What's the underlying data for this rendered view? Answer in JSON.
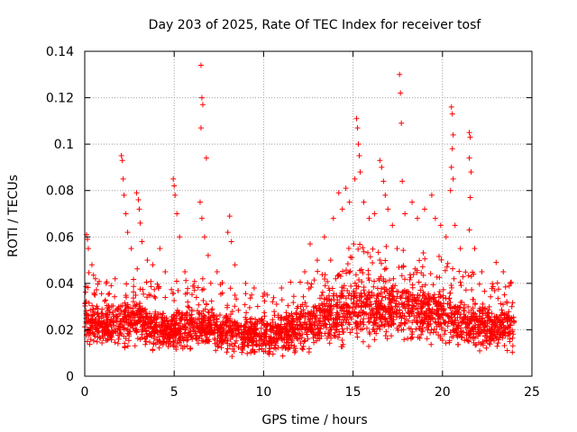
{
  "chart_data": {
    "type": "scatter",
    "title": "Day 203 of 2025, Rate Of TEC Index for receiver tosf",
    "xlabel": "GPS time / hours",
    "ylabel": "ROTI / TECUs",
    "xlim": [
      0,
      25
    ],
    "ylim": [
      0,
      0.14
    ],
    "xticks": [
      "0",
      "5",
      "10",
      "15",
      "20",
      "25"
    ],
    "yticks": [
      "0",
      "0.02",
      "0.04",
      "0.06",
      "0.08",
      "0.1",
      "0.12",
      "0.14"
    ],
    "grid": true,
    "marker": "+",
    "color": "#ff0000",
    "baseline_envelope": [
      {
        "x": 0.0,
        "lo": 0.01,
        "hi": 0.035
      },
      {
        "x": 1.0,
        "lo": 0.009,
        "hi": 0.03
      },
      {
        "x": 2.0,
        "lo": 0.009,
        "hi": 0.033
      },
      {
        "x": 3.0,
        "lo": 0.009,
        "hi": 0.035
      },
      {
        "x": 4.0,
        "lo": 0.008,
        "hi": 0.03
      },
      {
        "x": 5.0,
        "lo": 0.007,
        "hi": 0.03
      },
      {
        "x": 6.0,
        "lo": 0.009,
        "hi": 0.03
      },
      {
        "x": 7.0,
        "lo": 0.009,
        "hi": 0.03
      },
      {
        "x": 8.0,
        "lo": 0.008,
        "hi": 0.028
      },
      {
        "x": 9.0,
        "lo": 0.007,
        "hi": 0.027
      },
      {
        "x": 10.0,
        "lo": 0.007,
        "hi": 0.027
      },
      {
        "x": 11.0,
        "lo": 0.007,
        "hi": 0.028
      },
      {
        "x": 12.0,
        "lo": 0.008,
        "hi": 0.03
      },
      {
        "x": 13.0,
        "lo": 0.009,
        "hi": 0.035
      },
      {
        "x": 14.0,
        "lo": 0.01,
        "hi": 0.04
      },
      {
        "x": 15.0,
        "lo": 0.01,
        "hi": 0.045
      },
      {
        "x": 16.0,
        "lo": 0.01,
        "hi": 0.045
      },
      {
        "x": 17.0,
        "lo": 0.01,
        "hi": 0.045
      },
      {
        "x": 18.0,
        "lo": 0.01,
        "hi": 0.042
      },
      {
        "x": 19.0,
        "lo": 0.009,
        "hi": 0.042
      },
      {
        "x": 20.0,
        "lo": 0.009,
        "hi": 0.04
      },
      {
        "x": 21.0,
        "lo": 0.009,
        "hi": 0.035
      },
      {
        "x": 22.0,
        "lo": 0.009,
        "hi": 0.032
      },
      {
        "x": 23.0,
        "lo": 0.008,
        "hi": 0.03
      },
      {
        "x": 24.0,
        "lo": 0.008,
        "hi": 0.03
      }
    ],
    "highlights": [
      {
        "x": 0.1,
        "y": 0.061
      },
      {
        "x": 0.15,
        "y": 0.059
      },
      {
        "x": 0.2,
        "y": 0.055
      },
      {
        "x": 0.4,
        "y": 0.048
      },
      {
        "x": 0.6,
        "y": 0.042
      },
      {
        "x": 1.2,
        "y": 0.04
      },
      {
        "x": 1.7,
        "y": 0.042
      },
      {
        "x": 2.05,
        "y": 0.095
      },
      {
        "x": 2.1,
        "y": 0.093
      },
      {
        "x": 2.15,
        "y": 0.085
      },
      {
        "x": 2.2,
        "y": 0.078
      },
      {
        "x": 2.3,
        "y": 0.07
      },
      {
        "x": 2.4,
        "y": 0.062
      },
      {
        "x": 2.6,
        "y": 0.055
      },
      {
        "x": 2.9,
        "y": 0.079
      },
      {
        "x": 3.0,
        "y": 0.076
      },
      {
        "x": 3.05,
        "y": 0.072
      },
      {
        "x": 3.1,
        "y": 0.066
      },
      {
        "x": 3.2,
        "y": 0.058
      },
      {
        "x": 3.5,
        "y": 0.05
      },
      {
        "x": 3.8,
        "y": 0.048
      },
      {
        "x": 4.2,
        "y": 0.055
      },
      {
        "x": 4.5,
        "y": 0.045
      },
      {
        "x": 4.95,
        "y": 0.085
      },
      {
        "x": 5.0,
        "y": 0.082
      },
      {
        "x": 5.05,
        "y": 0.078
      },
      {
        "x": 5.15,
        "y": 0.07
      },
      {
        "x": 5.3,
        "y": 0.06
      },
      {
        "x": 5.6,
        "y": 0.045
      },
      {
        "x": 6.5,
        "y": 0.134
      },
      {
        "x": 6.55,
        "y": 0.12
      },
      {
        "x": 6.6,
        "y": 0.117
      },
      {
        "x": 6.5,
        "y": 0.107
      },
      {
        "x": 6.8,
        "y": 0.094
      },
      {
        "x": 6.45,
        "y": 0.075
      },
      {
        "x": 6.55,
        "y": 0.068
      },
      {
        "x": 6.7,
        "y": 0.06
      },
      {
        "x": 6.9,
        "y": 0.052
      },
      {
        "x": 7.4,
        "y": 0.045
      },
      {
        "x": 8.0,
        "y": 0.062
      },
      {
        "x": 8.1,
        "y": 0.069
      },
      {
        "x": 8.2,
        "y": 0.058
      },
      {
        "x": 8.4,
        "y": 0.048
      },
      {
        "x": 9.0,
        "y": 0.04
      },
      {
        "x": 10.2,
        "y": 0.035
      },
      {
        "x": 11.0,
        "y": 0.038
      },
      {
        "x": 12.3,
        "y": 0.045
      },
      {
        "x": 12.6,
        "y": 0.057
      },
      {
        "x": 13.0,
        "y": 0.05
      },
      {
        "x": 13.4,
        "y": 0.06
      },
      {
        "x": 13.9,
        "y": 0.068
      },
      {
        "x": 14.2,
        "y": 0.079
      },
      {
        "x": 14.4,
        "y": 0.072
      },
      {
        "x": 14.6,
        "y": 0.081
      },
      {
        "x": 14.8,
        "y": 0.075
      },
      {
        "x": 15.1,
        "y": 0.085
      },
      {
        "x": 15.2,
        "y": 0.111
      },
      {
        "x": 15.25,
        "y": 0.107
      },
      {
        "x": 15.3,
        "y": 0.1
      },
      {
        "x": 15.35,
        "y": 0.095
      },
      {
        "x": 15.4,
        "y": 0.088
      },
      {
        "x": 15.6,
        "y": 0.075
      },
      {
        "x": 15.9,
        "y": 0.068
      },
      {
        "x": 16.2,
        "y": 0.07
      },
      {
        "x": 16.5,
        "y": 0.093
      },
      {
        "x": 16.6,
        "y": 0.09
      },
      {
        "x": 16.7,
        "y": 0.084
      },
      {
        "x": 16.8,
        "y": 0.078
      },
      {
        "x": 16.95,
        "y": 0.072
      },
      {
        "x": 17.2,
        "y": 0.065
      },
      {
        "x": 17.6,
        "y": 0.13
      },
      {
        "x": 17.65,
        "y": 0.122
      },
      {
        "x": 17.7,
        "y": 0.109
      },
      {
        "x": 17.75,
        "y": 0.084
      },
      {
        "x": 17.9,
        "y": 0.07
      },
      {
        "x": 18.3,
        "y": 0.075
      },
      {
        "x": 18.6,
        "y": 0.068
      },
      {
        "x": 19.0,
        "y": 0.072
      },
      {
        "x": 19.4,
        "y": 0.078
      },
      {
        "x": 19.6,
        "y": 0.068
      },
      {
        "x": 19.9,
        "y": 0.065
      },
      {
        "x": 20.2,
        "y": 0.06
      },
      {
        "x": 20.5,
        "y": 0.116
      },
      {
        "x": 20.55,
        "y": 0.113
      },
      {
        "x": 20.6,
        "y": 0.104
      },
      {
        "x": 20.55,
        "y": 0.098
      },
      {
        "x": 20.5,
        "y": 0.09
      },
      {
        "x": 20.6,
        "y": 0.085
      },
      {
        "x": 20.45,
        "y": 0.08
      },
      {
        "x": 20.7,
        "y": 0.065
      },
      {
        "x": 21.0,
        "y": 0.055
      },
      {
        "x": 21.5,
        "y": 0.105
      },
      {
        "x": 21.55,
        "y": 0.103
      },
      {
        "x": 21.5,
        "y": 0.094
      },
      {
        "x": 21.6,
        "y": 0.088
      },
      {
        "x": 21.55,
        "y": 0.077
      },
      {
        "x": 21.5,
        "y": 0.063
      },
      {
        "x": 21.8,
        "y": 0.055
      },
      {
        "x": 22.2,
        "y": 0.045
      },
      {
        "x": 23.0,
        "y": 0.049
      },
      {
        "x": 23.4,
        "y": 0.045
      },
      {
        "x": 23.8,
        "y": 0.04
      }
    ]
  }
}
